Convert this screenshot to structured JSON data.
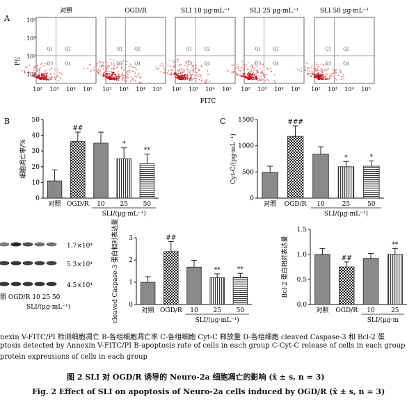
{
  "panelA": {
    "letter": "A",
    "titles": [
      "对照",
      "OGD/R",
      "SLI 10 μg·mL⁻¹",
      "SLI 25 μg·mL⁻¹",
      "SLI 50 μg·mL⁻¹"
    ],
    "yticks": [
      "10⁵",
      "10⁴",
      "10³",
      "10²"
    ],
    "xticks": [
      "10²",
      "10³",
      "10⁴",
      "10⁵"
    ],
    "ylabel": "PE",
    "xlabel": "FITC",
    "quad_labels": [
      "Q1",
      "Q2",
      "Q3",
      "Q4"
    ]
  },
  "chart_data": [
    {
      "type": "bar",
      "panel": "B",
      "categories": [
        "对照",
        "OGD/R",
        "10",
        "25",
        "50"
      ],
      "values": [
        11,
        36,
        35,
        25,
        22
      ],
      "errors": [
        7,
        6,
        7,
        7,
        6
      ],
      "significance": [
        "",
        "##",
        "",
        "*",
        "**"
      ],
      "ylabel": "细胞凋亡率/%",
      "xlabel": "SLI/(μg·mL⁻¹)",
      "ylim": [
        0,
        50
      ],
      "yticks": [
        "0",
        "10",
        "20",
        "30",
        "40",
        "50"
      ]
    },
    {
      "type": "bar",
      "panel": "C",
      "categories": [
        "对照",
        "OGD/R",
        "10",
        "25",
        "50"
      ],
      "values": [
        490,
        1180,
        840,
        600,
        610
      ],
      "errors": [
        120,
        200,
        140,
        100,
        100
      ],
      "significance": [
        "",
        "###",
        "",
        "*",
        "*"
      ],
      "ylabel": "Cyt-C/(pg·mL⁻¹)",
      "xlabel": "SLI/(μg·mL⁻¹)",
      "ylim": [
        0,
        1500
      ],
      "yticks": [
        "0",
        "500",
        "1000",
        "1500"
      ]
    },
    {
      "type": "bar",
      "panel": "D1",
      "categories": [
        "对照",
        "OGD/R",
        "10",
        "25",
        "50"
      ],
      "values": [
        1.0,
        2.38,
        1.68,
        1.2,
        1.22
      ],
      "errors": [
        0.25,
        0.45,
        0.3,
        0.18,
        0.18
      ],
      "significance": [
        "",
        "##",
        "",
        "**",
        "**"
      ],
      "ylabel": "cleaved Caspase-3 蛋白相对表达量",
      "xlabel": "SLI/(μg·mL⁻¹)",
      "ylim": [
        0,
        3
      ],
      "yticks": [
        "0",
        "1",
        "2",
        "3"
      ]
    },
    {
      "type": "bar",
      "panel": "D2",
      "categories": [
        "对照",
        "OGD/R",
        "10",
        "25"
      ],
      "values": [
        1.0,
        0.75,
        0.92,
        1.0
      ],
      "errors": [
        0.12,
        0.1,
        0.1,
        0.12
      ],
      "significance": [
        "",
        "##",
        "",
        "**"
      ],
      "ylabel": "Bcl-2 蛋白相对表达量",
      "xlabel": "SLI/(μg·m",
      "ylim": [
        0,
        1.5
      ],
      "yticks": [
        "0.0",
        "0.5",
        "1.0",
        "1.5"
      ]
    }
  ],
  "panelB": {
    "letter": "B"
  },
  "panelC": {
    "letter": "C"
  },
  "blot": {
    "mw": [
      "1.7×10⁴",
      "5.3×10⁴",
      "4.5×10⁴"
    ],
    "lanes": "照  OGD/R  10  25  50",
    "xlabel": "SLI/(μg·mL⁻¹)"
  },
  "caption": {
    "line1": "nexin V-FITC/PI 检测细胞凋亡   B-各组细胞凋亡率   C-各组细胞 Cyt-C 释放量   D-各组细胞 cleaved Caspase-3 和 Bcl-2 蛋",
    "line2": "ptosis detected by Annexin V-FITC/PI   B-apoptosis rate of cells in each group   C-Cyt-C release of cells in each group   D-cle",
    "line3": "protein expressions of cells in each group",
    "fig_cn": "图 2    SLI 对 OGD/R 诱导的 Neuro-2a 细胞凋亡的影响 (x̄ ± s, n = 3)",
    "fig_en": "Fig. 2    Effect of SLI on apoptosis of Neuro-2a cells induced by OGD/R (x̄ ± s, n = 3)"
  }
}
